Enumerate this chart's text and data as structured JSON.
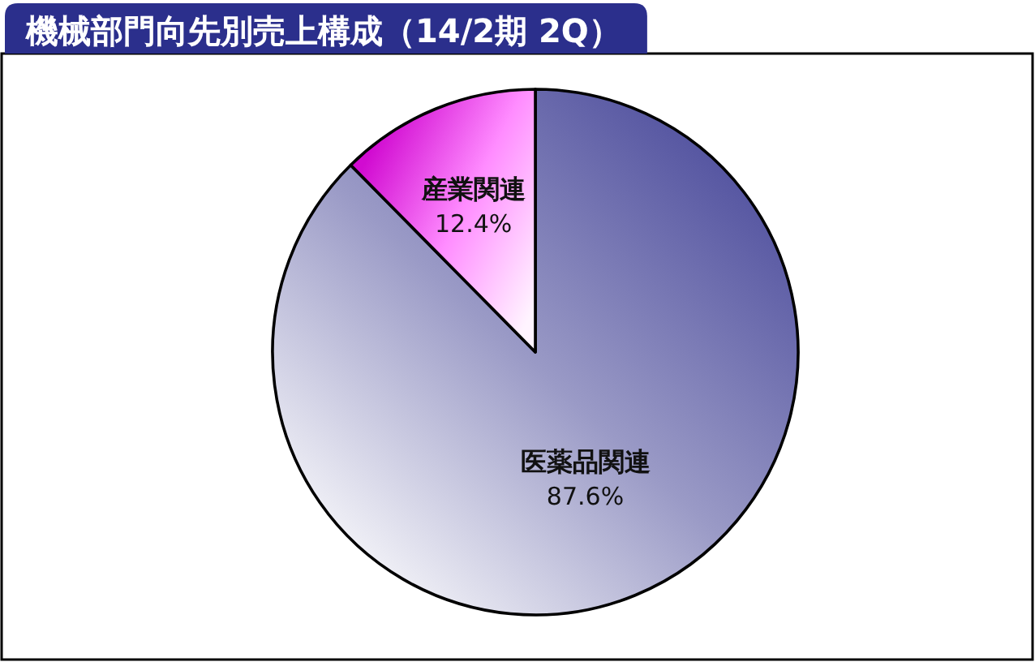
{
  "chart_data": {
    "type": "pie",
    "title": "機械部門向先別売上構成（14/2期 2Q）",
    "categories": [
      "医薬品関連",
      "産業関連"
    ],
    "values": [
      87.6,
      12.4
    ],
    "colors": [
      "#9a9ac6",
      "#ff8cff"
    ],
    "value_labels": [
      "87.6%",
      "12.4%"
    ]
  }
}
